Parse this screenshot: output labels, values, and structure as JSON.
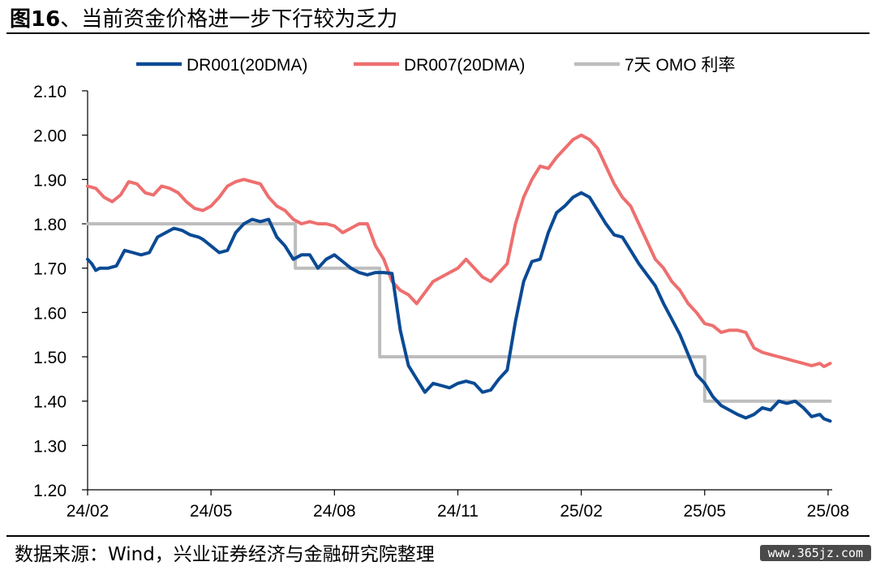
{
  "header": {
    "title_bold": "图16",
    "title_rest": "、当前资金价格进一步下行较为乏力"
  },
  "footer": {
    "source": "数据来源：Wind，兴业证券经济与金融研究院整理",
    "watermark": "www.365jz.com"
  },
  "chart_data": {
    "type": "line",
    "title": "",
    "xlabel": "",
    "ylabel": "",
    "ylim": [
      1.2,
      2.1
    ],
    "y_ticks": [
      "1.20",
      "1.30",
      "1.40",
      "1.50",
      "1.60",
      "1.70",
      "1.80",
      "1.90",
      "2.00",
      "2.10"
    ],
    "x_ticks": [
      "24/02",
      "24/05",
      "24/08",
      "24/11",
      "25/02",
      "25/05",
      "25/08"
    ],
    "x_tick_positions": [
      0,
      3,
      6,
      9,
      12,
      15,
      18
    ],
    "xlim": [
      0,
      18.1
    ],
    "x_unit": "months since 2024/02",
    "legend_position": "top",
    "grid": false,
    "series": [
      {
        "name": "DR001(20DMA)",
        "color": "#0a4a94",
        "x": [
          0.0,
          0.1,
          0.2,
          0.3,
          0.5,
          0.7,
          0.9,
          1.1,
          1.3,
          1.5,
          1.7,
          1.9,
          2.1,
          2.3,
          2.5,
          2.7,
          2.8,
          3.0,
          3.2,
          3.4,
          3.6,
          3.8,
          4.0,
          4.2,
          4.4,
          4.6,
          4.8,
          5.0,
          5.2,
          5.4,
          5.6,
          5.8,
          6.0,
          6.2,
          6.4,
          6.6,
          6.8,
          7.0,
          7.2,
          7.4,
          7.6,
          7.8,
          8.0,
          8.2,
          8.4,
          8.6,
          8.8,
          9.0,
          9.2,
          9.4,
          9.6,
          9.8,
          10.0,
          10.2,
          10.4,
          10.6,
          10.8,
          11.0,
          11.2,
          11.4,
          11.6,
          11.8,
          12.0,
          12.2,
          12.4,
          12.6,
          12.8,
          13.0,
          13.2,
          13.4,
          13.6,
          13.8,
          14.0,
          14.2,
          14.4,
          14.6,
          14.8,
          15.0,
          15.2,
          15.4,
          15.6,
          15.8,
          16.0,
          16.2,
          16.4,
          16.6,
          16.8,
          17.0,
          17.2,
          17.4,
          17.6,
          17.8,
          17.9,
          18.05
        ],
        "values": [
          1.72,
          1.71,
          1.695,
          1.7,
          1.7,
          1.705,
          1.74,
          1.735,
          1.73,
          1.735,
          1.77,
          1.78,
          1.79,
          1.785,
          1.775,
          1.77,
          1.765,
          1.75,
          1.735,
          1.74,
          1.78,
          1.8,
          1.81,
          1.805,
          1.81,
          1.77,
          1.75,
          1.72,
          1.73,
          1.73,
          1.7,
          1.72,
          1.73,
          1.715,
          1.7,
          1.69,
          1.685,
          1.69,
          1.69,
          1.688,
          1.56,
          1.48,
          1.45,
          1.42,
          1.44,
          1.435,
          1.43,
          1.44,
          1.445,
          1.44,
          1.42,
          1.425,
          1.45,
          1.47,
          1.58,
          1.67,
          1.715,
          1.72,
          1.78,
          1.825,
          1.84,
          1.86,
          1.87,
          1.86,
          1.83,
          1.8,
          1.775,
          1.77,
          1.74,
          1.71,
          1.685,
          1.66,
          1.62,
          1.585,
          1.55,
          1.505,
          1.46,
          1.44,
          1.41,
          1.39,
          1.38,
          1.37,
          1.362,
          1.37,
          1.385,
          1.38,
          1.4,
          1.395,
          1.4,
          1.385,
          1.365,
          1.37,
          1.36,
          1.355
        ]
      },
      {
        "name": "DR007(20DMA)",
        "color": "#ee6f6f",
        "x": [
          0.0,
          0.2,
          0.4,
          0.6,
          0.8,
          1.0,
          1.2,
          1.4,
          1.6,
          1.8,
          2.0,
          2.2,
          2.4,
          2.6,
          2.8,
          3.0,
          3.2,
          3.4,
          3.6,
          3.8,
          4.0,
          4.2,
          4.4,
          4.6,
          4.8,
          5.0,
          5.2,
          5.4,
          5.6,
          5.8,
          6.0,
          6.2,
          6.4,
          6.6,
          6.8,
          7.0,
          7.2,
          7.4,
          7.6,
          7.8,
          8.0,
          8.2,
          8.4,
          8.6,
          8.8,
          9.0,
          9.2,
          9.4,
          9.6,
          9.8,
          10.0,
          10.2,
          10.4,
          10.6,
          10.8,
          11.0,
          11.2,
          11.4,
          11.6,
          11.8,
          12.0,
          12.2,
          12.4,
          12.6,
          12.8,
          13.0,
          13.2,
          13.4,
          13.6,
          13.8,
          14.0,
          14.2,
          14.4,
          14.6,
          14.8,
          15.0,
          15.2,
          15.4,
          15.6,
          15.8,
          16.0,
          16.2,
          16.4,
          16.6,
          16.8,
          17.0,
          17.2,
          17.4,
          17.6,
          17.8,
          17.9,
          18.05
        ],
        "values": [
          1.885,
          1.88,
          1.86,
          1.85,
          1.865,
          1.895,
          1.89,
          1.87,
          1.865,
          1.885,
          1.88,
          1.87,
          1.85,
          1.835,
          1.83,
          1.84,
          1.86,
          1.885,
          1.895,
          1.9,
          1.895,
          1.89,
          1.86,
          1.84,
          1.83,
          1.81,
          1.8,
          1.805,
          1.8,
          1.8,
          1.795,
          1.78,
          1.79,
          1.8,
          1.8,
          1.75,
          1.72,
          1.67,
          1.65,
          1.64,
          1.62,
          1.645,
          1.67,
          1.68,
          1.69,
          1.7,
          1.72,
          1.7,
          1.68,
          1.67,
          1.69,
          1.71,
          1.8,
          1.86,
          1.9,
          1.93,
          1.925,
          1.95,
          1.97,
          1.99,
          2.0,
          1.99,
          1.97,
          1.93,
          1.89,
          1.86,
          1.84,
          1.8,
          1.76,
          1.72,
          1.7,
          1.67,
          1.65,
          1.62,
          1.6,
          1.575,
          1.57,
          1.555,
          1.56,
          1.56,
          1.555,
          1.52,
          1.51,
          1.505,
          1.5,
          1.495,
          1.49,
          1.485,
          1.48,
          1.485,
          1.478,
          1.485
        ]
      },
      {
        "name": "7天 OMO 利率",
        "color": "#bdbdbd",
        "x": [
          0.0,
          5.05,
          5.05,
          7.1,
          7.1,
          15.0,
          15.0,
          18.05
        ],
        "values": [
          1.8,
          1.8,
          1.7,
          1.7,
          1.5,
          1.5,
          1.4,
          1.4
        ]
      }
    ]
  }
}
